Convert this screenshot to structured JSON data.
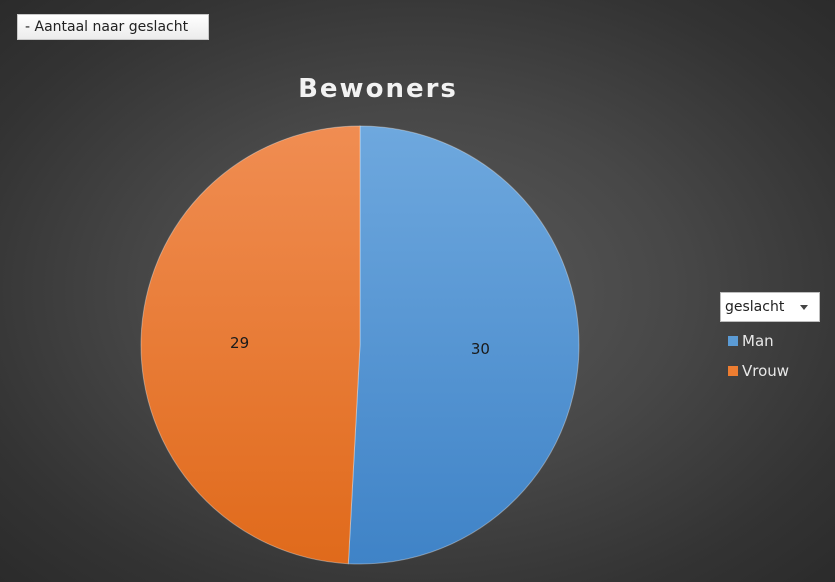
{
  "filter_button": {
    "label": "- Aantaal naar geslacht"
  },
  "chart_data": {
    "type": "pie",
    "title": "Bewoners",
    "categories": [
      "Man",
      "Vrouw"
    ],
    "values": [
      30,
      29
    ],
    "colors": [
      "#5b9bd5",
      "#ed7d31"
    ],
    "data_labels": [
      "30",
      "29"
    ],
    "legend": {
      "title": "geslacht",
      "entries": [
        "Man",
        "Vrouw"
      ],
      "placement": "right"
    }
  }
}
